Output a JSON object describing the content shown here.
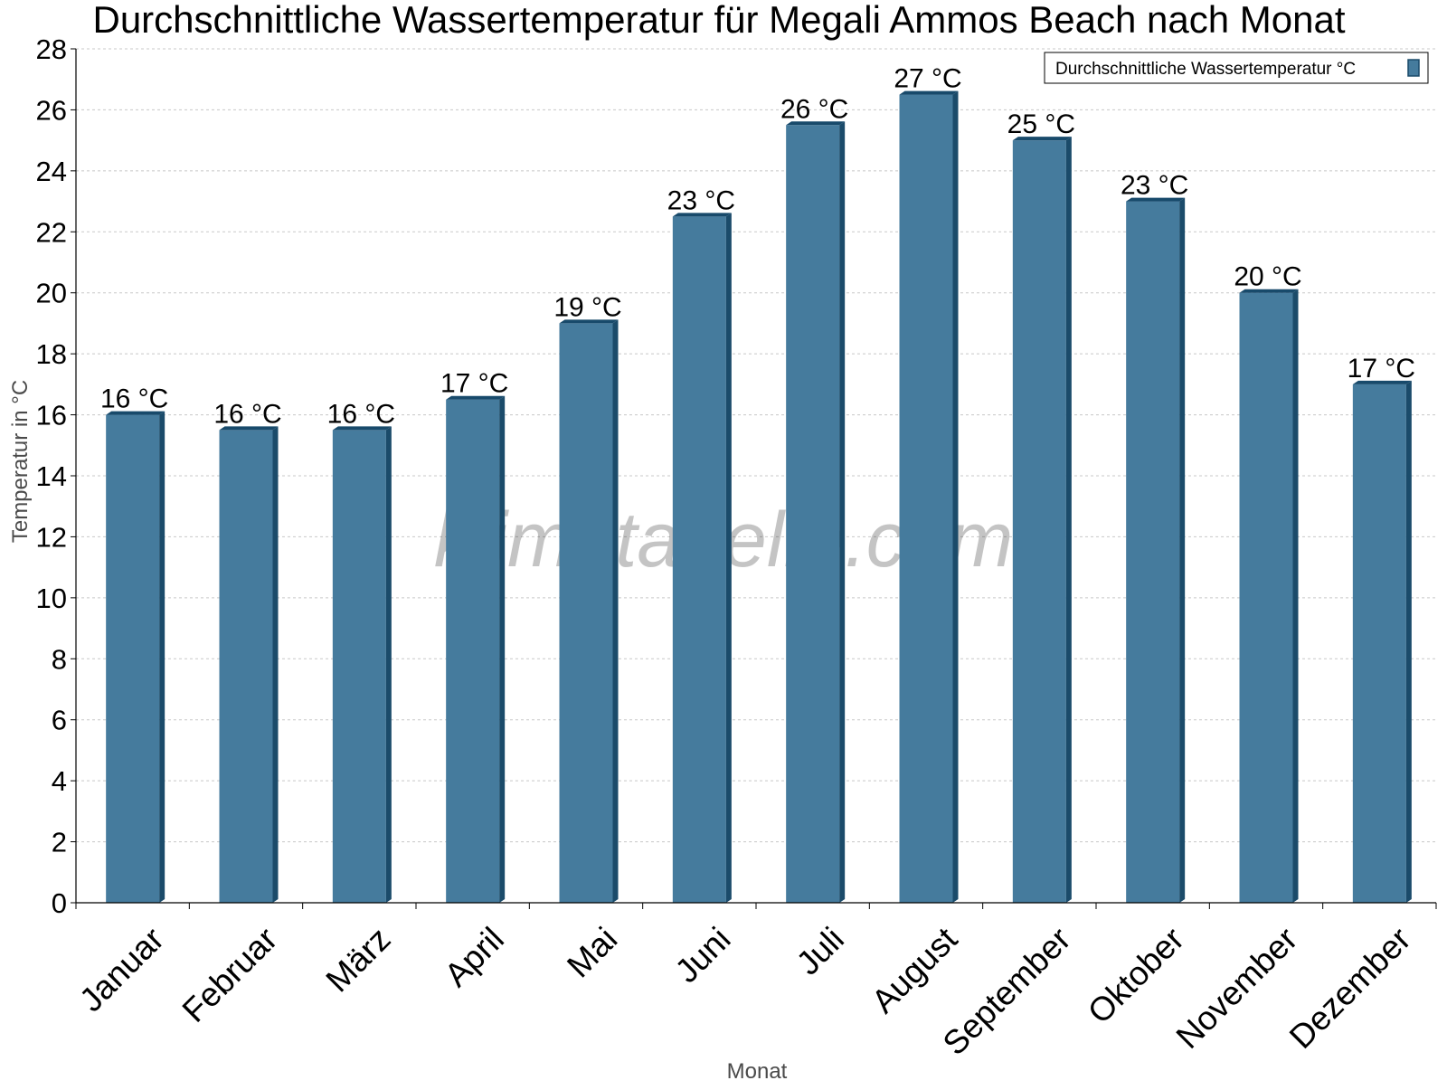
{
  "colors": {
    "bar_front": "#457b9d",
    "bar_side": "#1b4b6a",
    "bar_top": "#184a6b",
    "grid": "#c8c8c8",
    "axis": "#000000"
  },
  "watermark": "klimatabelle.com",
  "chart_data": {
    "type": "bar",
    "title": "Durchschnittliche Wassertemperatur für Megali Ammos Beach nach Monat",
    "xlabel": "Monat",
    "ylabel": "Temperatur in °C",
    "ylim": [
      0,
      28
    ],
    "yticks": [
      "0",
      "2",
      "4",
      "6",
      "8",
      "10",
      "12",
      "14",
      "16",
      "18",
      "20",
      "22",
      "24",
      "26",
      "28"
    ],
    "grid": true,
    "legend_position": "top-right",
    "categories": [
      "Januar",
      "Februar",
      "März",
      "April",
      "Mai",
      "Juni",
      "Juli",
      "August",
      "September",
      "Oktober",
      "November",
      "Dezember"
    ],
    "series": [
      {
        "name": "Durchschnittliche Wassertemperatur °C",
        "values": [
          16,
          15.5,
          15.5,
          16.5,
          19,
          22.5,
          25.5,
          26.5,
          25,
          23,
          20,
          17
        ],
        "labels": [
          "16 °C",
          "16 °C",
          "16 °C",
          "17 °C",
          "19 °C",
          "23 °C",
          "26 °C",
          "27 °C",
          "25 °C",
          "23 °C",
          "20 °C",
          "17 °C"
        ]
      }
    ]
  }
}
